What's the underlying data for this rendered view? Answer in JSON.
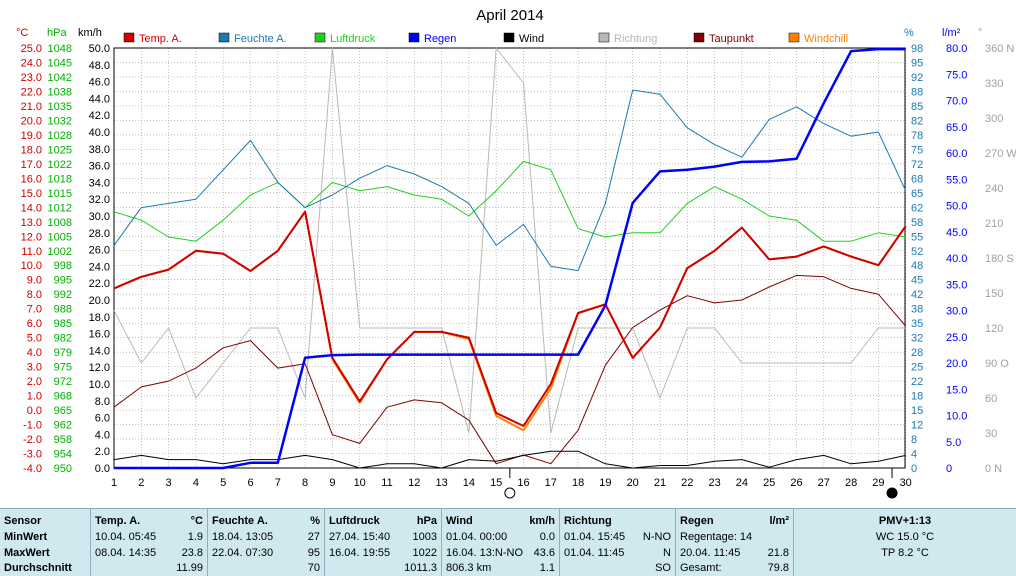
{
  "chart_data": {
    "type": "line",
    "title": "April 2014",
    "x": [
      1,
      2,
      3,
      4,
      5,
      6,
      7,
      8,
      9,
      10,
      11,
      12,
      13,
      14,
      15,
      16,
      17,
      18,
      19,
      20,
      21,
      22,
      23,
      24,
      25,
      26,
      27,
      28,
      29,
      30
    ],
    "x_ticks": [
      "1",
      "2",
      "3",
      "4",
      "5",
      "6",
      "7",
      "8",
      "9",
      "10",
      "11",
      "12",
      "13",
      "14",
      "15",
      "16",
      "17",
      "18",
      "19",
      "20",
      "21",
      "22",
      "23",
      "24",
      "25",
      "26",
      "27",
      "28",
      "29",
      "30"
    ],
    "axes": {
      "temp": {
        "unit": "°C",
        "min": -4,
        "max": 25,
        "step": 1,
        "color": "#d00000",
        "ticks": [
          "-4.0",
          "-3.0",
          "-2.0",
          "-1.0",
          "0.0",
          "1.0",
          "2.0",
          "3.0",
          "4.0",
          "5.0",
          "6.0",
          "7.0",
          "8.0",
          "9.0",
          "10.0",
          "11.0",
          "12.0",
          "13.0",
          "14.0",
          "15.0",
          "16.0",
          "17.0",
          "18.0",
          "19.0",
          "20.0",
          "21.0",
          "22.0",
          "23.0",
          "24.0",
          "25.0"
        ]
      },
      "pressure": {
        "unit": "hPa",
        "min": 950,
        "max": 1050,
        "color": "#00b000",
        "ticks": [
          "950",
          "954",
          "958",
          "962",
          "965",
          "968",
          "972",
          "975",
          "979",
          "982",
          "985",
          "988",
          "992",
          "995",
          "998",
          "1002",
          "1005",
          "1008",
          "1012",
          "1015",
          "1018",
          "1022",
          "1025",
          "1028",
          "1032",
          "1035",
          "1038",
          "1042",
          "1045",
          "1048"
        ]
      },
      "wind": {
        "unit": "km/h",
        "min": 0,
        "max": 50,
        "step": 2,
        "color": "#000000",
        "ticks": [
          "0.0",
          "2.0",
          "4.0",
          "6.0",
          "8.0",
          "10.0",
          "12.0",
          "14.0",
          "16.0",
          "18.0",
          "20.0",
          "22.0",
          "24.0",
          "26.0",
          "28.0",
          "30.0",
          "32.0",
          "34.0",
          "36.0",
          "38.0",
          "40.0",
          "42.0",
          "44.0",
          "46.0",
          "48.0",
          "50.0"
        ]
      },
      "humidity": {
        "unit": "%",
        "min": 0,
        "max": 100,
        "color": "#1a7ab0",
        "ticks": [
          "0",
          "4",
          "8",
          "12",
          "15",
          "18",
          "22",
          "25",
          "28",
          "32",
          "35",
          "38",
          "42",
          "45",
          "48",
          "52",
          "55",
          "58",
          "62",
          "65",
          "68",
          "72",
          "75",
          "78",
          "82",
          "85",
          "88",
          "92",
          "95",
          "98"
        ]
      },
      "rain": {
        "unit": "l/m²",
        "min": 0,
        "max": 80,
        "step": 5,
        "color": "#0000ff",
        "ticks": [
          "0",
          "5.0",
          "10.0",
          "15.0",
          "20.0",
          "25.0",
          "30.0",
          "35.0",
          "40.0",
          "45.0",
          "50.0",
          "55.0",
          "60.0",
          "65.0",
          "70.0",
          "75.0",
          "80.0"
        ]
      },
      "direction": {
        "unit": "°",
        "min": 0,
        "max": 360,
        "color": "#a0a0a0",
        "ticks": [
          "0 N",
          "30",
          "60",
          "90 O",
          "120",
          "150",
          "180 S",
          "210",
          "240",
          "270 W",
          "300",
          "330",
          "360 N"
        ]
      }
    },
    "legend": [
      {
        "name": "Temp. A.",
        "color": "#d00000"
      },
      {
        "name": "Feuchte A.",
        "color": "#1a7ab0"
      },
      {
        "name": "Luftdruck",
        "color": "#20d020"
      },
      {
        "name": "Regen",
        "color": "#0000ff"
      },
      {
        "name": "Wind",
        "color": "#000000"
      },
      {
        "name": "Richtung",
        "color": "#b8b8b8"
      },
      {
        "name": "Taupunkt",
        "color": "#800000"
      },
      {
        "name": "Windchill",
        "color": "#ff8000"
      }
    ],
    "legend_placement": "top",
    "grid": true,
    "series": {
      "temp": [
        8.4,
        9.2,
        9.7,
        11.0,
        10.8,
        9.6,
        11.0,
        13.7,
        3.6,
        0.6,
        3.5,
        5.4,
        5.4,
        5.0,
        -0.2,
        -1.1,
        1.8,
        6.7,
        7.3,
        3.6,
        5.7,
        9.8,
        11.0,
        12.6,
        10.4,
        10.6,
        11.3,
        10.6,
        10.0,
        12.7
      ],
      "windchill": [
        8.4,
        9.2,
        9.7,
        11.0,
        10.8,
        9.6,
        11.0,
        13.7,
        3.5,
        0.5,
        3.5,
        5.4,
        5.4,
        4.9,
        -0.4,
        -1.4,
        1.5,
        6.7,
        7.3,
        3.6,
        5.7,
        9.8,
        11.0,
        12.6,
        10.4,
        10.6,
        11.3,
        10.6,
        10.0,
        12.7
      ],
      "dewpoint": [
        0.2,
        1.6,
        2.0,
        2.9,
        4.3,
        4.8,
        2.9,
        3.2,
        -1.7,
        -2.3,
        0.2,
        0.7,
        0.5,
        -0.7,
        -3.7,
        -3.1,
        -3.7,
        -1.4,
        3.1,
        5.7,
        6.9,
        7.9,
        7.4,
        7.6,
        8.5,
        9.3,
        9.2,
        8.4,
        8.0,
        5.8
      ],
      "pressure": [
        1011,
        1009,
        1005,
        1004,
        1009,
        1015,
        1018,
        1012,
        1018,
        1016,
        1017,
        1015,
        1014,
        1010,
        1016,
        1023,
        1021,
        1007,
        1005,
        1006,
        1006,
        1013,
        1017,
        1014,
        1010,
        1009,
        1004,
        1004,
        1006,
        1005
      ],
      "humidity": [
        53,
        62,
        63,
        64,
        71,
        78,
        68,
        62,
        65,
        69,
        72,
        70,
        67,
        63,
        53,
        58,
        48,
        47,
        63,
        90,
        89,
        81,
        77,
        74,
        83,
        86,
        82,
        79,
        80,
        66
      ],
      "rain": [
        0,
        0,
        0,
        0,
        0,
        1,
        1,
        21,
        21.5,
        21.6,
        21.6,
        21.6,
        21.6,
        21.6,
        21.6,
        21.6,
        21.6,
        21.6,
        31,
        50.5,
        56.5,
        56.8,
        57.4,
        58.3,
        58.4,
        58.9,
        69.5,
        79.4,
        79.8,
        79.8
      ],
      "wind": [
        1.0,
        1.5,
        1.0,
        1.0,
        0.5,
        1.0,
        1.0,
        1.5,
        1.0,
        0.0,
        0.5,
        0.5,
        0.0,
        1.0,
        0.8,
        1.5,
        2.0,
        2.0,
        0.5,
        0.0,
        0.3,
        0.3,
        0.8,
        1.0,
        0.1,
        1.0,
        1.5,
        0.5,
        0.8,
        1.5
      ],
      "direction": [
        135,
        90,
        120,
        60,
        90,
        120,
        120,
        60,
        360,
        120,
        120,
        120,
        120,
        30,
        360,
        330,
        30,
        120,
        120,
        120,
        60,
        120,
        120,
        90,
        90,
        90,
        90,
        90,
        120,
        120
      ]
    },
    "moon_phases": [
      {
        "day": 15.5,
        "phase": "full"
      },
      {
        "day": 29.5,
        "phase": "new"
      }
    ]
  },
  "stats": {
    "sensor": {
      "title": "Sensor",
      "rows": [
        "MinWert",
        "MaxWert",
        "Durchschnitt"
      ]
    },
    "temp": {
      "title": "Temp. A.",
      "unit": "°C",
      "min_time": "10.04.  05:45",
      "min_val": "1.9",
      "max_time": "08.04.  14:35",
      "max_val": "23.8",
      "avg": "11.99"
    },
    "humidity": {
      "title": "Feuchte A.",
      "unit": "%",
      "min_time": "18.04.  13:05",
      "min_val": "27",
      "max_time": "22.04.  07:30",
      "max_val": "95",
      "avg": "70"
    },
    "pressure": {
      "title": "Luftdruck",
      "unit": "hPa",
      "min_time": "27.04.  15:40",
      "min_val": "1003",
      "max_time": "16.04.  19:55",
      "max_val": "1022",
      "avg": "1011.3"
    },
    "wind": {
      "title": "Wind",
      "unit": "km/h",
      "min_time": "01.04.  00:00",
      "min_val": "0.0",
      "max_time": "16.04.  13:N-NO",
      "max_val": "43.6",
      "total": "806.3 km",
      "avg": "1.1"
    },
    "direction": {
      "title": "Richtung",
      "min_time": "01.04.  15:45",
      "min_val": "N-NO",
      "max_time": "01.04.  11:45",
      "max_val": "N",
      "avg": "SO"
    },
    "rain": {
      "title": "Regen",
      "unit": "l/m²",
      "days": "Regentage: 14",
      "max_time": "20.04.  11:45",
      "max_val": "21.8",
      "total_label": "Gesamt:",
      "total": "79.8"
    },
    "pmv": {
      "title": "PMV+1:13",
      "wc": "WC 15.0 °C",
      "tp": "TP 8.2 °C"
    }
  }
}
